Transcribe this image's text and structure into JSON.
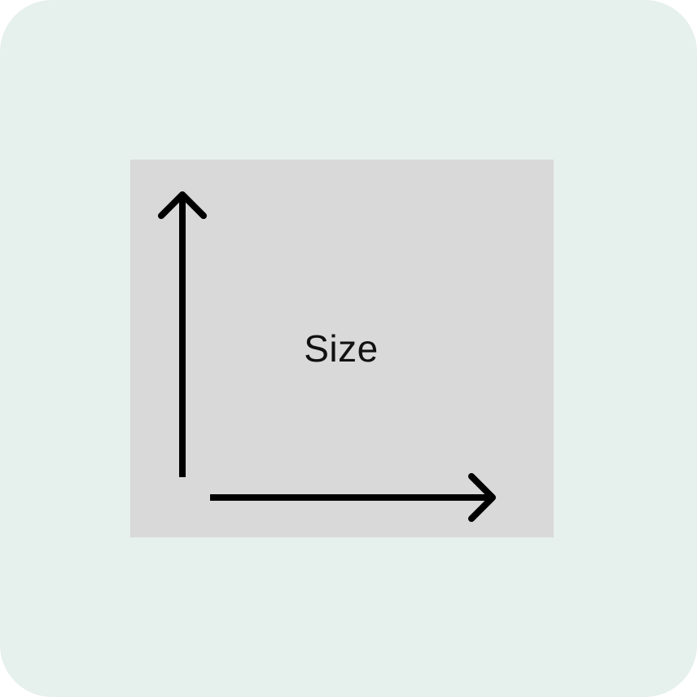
{
  "illustration": {
    "label": "Size",
    "icons": [
      "vertical-arrow-icon",
      "horizontal-arrow-icon"
    ],
    "colors": {
      "background": "#e6f0ed",
      "frame": "#d9d9d9",
      "stroke": "#000000"
    }
  }
}
